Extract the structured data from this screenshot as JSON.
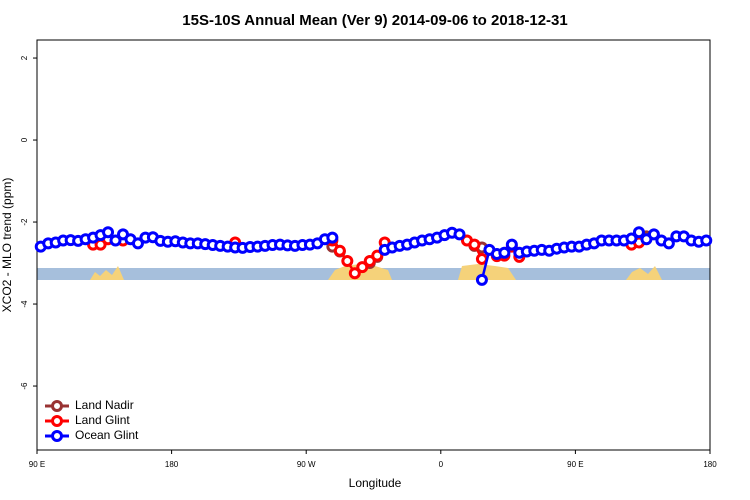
{
  "chart_data": {
    "type": "line",
    "title": "15S-10S Annual Mean (Ver 9)   2014-09-06 to 2018-12-31",
    "x_label": "Longitude",
    "y_label": "XCO2 - MLO trend (ppm)",
    "xlim": [
      90,
      540
    ],
    "ylim": [
      -7.56,
      2.44
    ],
    "xticks": [
      {
        "value": 90,
        "label": "90 E"
      },
      180,
      {
        "value": 270,
        "label": "90 W"
      },
      {
        "value": 360,
        "label": "0"
      },
      {
        "value": 450,
        "label": "90 E"
      },
      {
        "value": 540,
        "label": "180"
      }
    ],
    "yticks": [
      2,
      0,
      -2,
      -4,
      -6
    ],
    "legend": "bottom-left",
    "x": [
      92.5,
      97.5,
      102.5,
      107.5,
      112.5,
      117.5,
      122.5,
      127.5,
      132.5,
      137.5,
      142.5,
      147.5,
      152.5,
      157.5,
      162.5,
      167.5,
      172.5,
      177.5,
      182.5,
      187.5,
      192.5,
      197.5,
      202.5,
      207.5,
      212.5,
      217.5,
      222.5,
      227.5,
      232.5,
      237.5,
      242.5,
      247.5,
      252.5,
      257.5,
      262.5,
      267.5,
      272.5,
      277.5,
      282.5,
      287.5,
      292.5,
      297.5,
      302.5,
      307.5,
      312.5,
      317.5,
      322.5,
      327.5,
      332.5,
      337.5,
      342.5,
      347.5,
      352.5,
      357.5,
      362.5,
      367.5,
      372.5,
      377.5,
      382.5,
      387.5,
      392.5,
      397.5,
      402.5,
      407.5,
      412.5,
      417.5,
      422.5,
      427.5,
      432.5,
      437.5,
      442.5,
      447.5,
      452.5,
      457.5,
      462.5,
      467.5,
      472.5,
      477.5,
      482.5,
      487.5,
      492.5,
      497.5,
      502.5,
      507.5,
      512.5,
      517.5,
      522.5,
      527.5,
      532.5,
      537.5
    ],
    "series": [
      {
        "name": "Land Nadir",
        "color": "#993333",
        "values": [
          null,
          null,
          null,
          null,
          null,
          null,
          null,
          null,
          null,
          null,
          null,
          null,
          null,
          null,
          null,
          null,
          null,
          null,
          null,
          null,
          null,
          null,
          null,
          null,
          null,
          null,
          null,
          null,
          null,
          null,
          null,
          null,
          null,
          null,
          null,
          null,
          null,
          null,
          null,
          -2.6,
          -2.72,
          null,
          null,
          null,
          -3.0,
          -2.85,
          null,
          null,
          null,
          null,
          null,
          null,
          null,
          null,
          null,
          null,
          null,
          null,
          -2.58,
          -2.62,
          null,
          null,
          null,
          null,
          null,
          null,
          null,
          null,
          null,
          null,
          null,
          null,
          null,
          null,
          null,
          null,
          null,
          null,
          null,
          null,
          null,
          -2.35,
          null,
          null,
          null,
          null,
          null,
          null,
          null,
          null
        ]
      },
      {
        "name": "Land Glint",
        "color": "#ff0000",
        "values": [
          null,
          null,
          null,
          null,
          null,
          null,
          null,
          -2.55,
          -2.55,
          -2.42,
          null,
          -2.45,
          null,
          null,
          null,
          null,
          null,
          null,
          null,
          null,
          null,
          null,
          null,
          null,
          null,
          null,
          -2.5,
          null,
          null,
          null,
          null,
          null,
          null,
          null,
          null,
          null,
          null,
          null,
          null,
          -2.45,
          -2.7,
          -2.95,
          -3.25,
          -3.1,
          -2.95,
          -2.82,
          -2.5,
          null,
          null,
          null,
          null,
          null,
          null,
          null,
          null,
          null,
          null,
          -2.45,
          -2.55,
          -2.9,
          null,
          -2.83,
          -2.82,
          -2.6,
          -2.85,
          null,
          null,
          null,
          null,
          null,
          null,
          null,
          null,
          null,
          null,
          null,
          null,
          null,
          null,
          -2.55,
          -2.5,
          null,
          null,
          null,
          null,
          null,
          null,
          null,
          null,
          null
        ]
      },
      {
        "name": "Ocean Glint",
        "color": "#0000ff",
        "values": [
          -2.6,
          -2.52,
          -2.5,
          -2.45,
          -2.44,
          -2.46,
          -2.42,
          -2.38,
          -2.32,
          -2.25,
          -2.45,
          -2.3,
          -2.42,
          -2.52,
          -2.38,
          -2.37,
          -2.46,
          -2.48,
          -2.47,
          -2.5,
          -2.52,
          -2.52,
          -2.54,
          -2.56,
          -2.58,
          -2.6,
          -2.62,
          -2.63,
          -2.61,
          -2.6,
          -2.58,
          -2.56,
          -2.55,
          -2.57,
          -2.58,
          -2.56,
          -2.55,
          -2.52,
          -2.42,
          -2.38,
          null,
          null,
          null,
          null,
          null,
          null,
          -2.68,
          -2.62,
          -2.58,
          -2.55,
          -2.5,
          -2.45,
          -2.42,
          -2.38,
          -2.32,
          -2.26,
          -2.3,
          null,
          null,
          -3.41,
          -2.68,
          -2.78,
          -2.75,
          -2.55,
          -2.75,
          -2.72,
          -2.7,
          -2.68,
          -2.7,
          -2.65,
          -2.62,
          -2.6,
          -2.6,
          -2.55,
          -2.52,
          -2.45,
          -2.45,
          -2.45,
          -2.45,
          -2.4,
          -2.25,
          -2.42,
          -2.3,
          -2.45,
          -2.52,
          -2.35,
          -2.35,
          -2.45,
          -2.48,
          -2.45
        ]
      }
    ]
  }
}
